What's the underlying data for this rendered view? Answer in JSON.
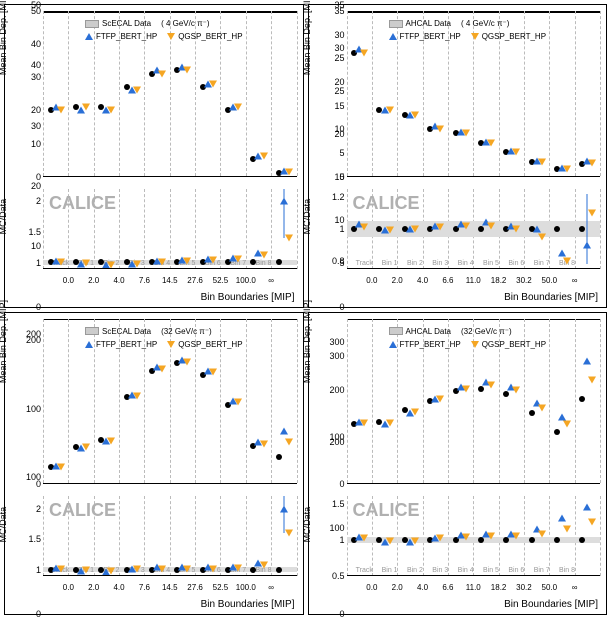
{
  "colors": {
    "data": "#000000",
    "ftfp": "#2a6fd6",
    "qgsp": "#f5a623",
    "band": "#dddddd",
    "grid": "#bbbbbb",
    "calice": "#b0b0b0"
  },
  "xtitle": "Bin Boundaries [MIP]",
  "calice": "CALICE",
  "bin_grid_positions": [
    0,
    10,
    20,
    30,
    40,
    50,
    60,
    70,
    80,
    90,
    100
  ],
  "bin_names": [
    "Track",
    "Bin 1",
    "Bin 2",
    "Bin 3",
    "Bin 4",
    "Bin 5",
    "Bin 6",
    "Bin 7",
    "Bin 8"
  ],
  "panels": [
    {
      "id": "tl",
      "ytitle_upper": "Mean Bin Dep. [MIP]",
      "ytitle_lower": "MC/Data",
      "legend": {
        "data": "ScECAL Data",
        "energy": "( 4 GeV/c π⁻)",
        "ftfp": "FTFP_BERT_HP",
        "qgsp": "QGSP_BERT_HP"
      },
      "upper": {
        "ymin": 0,
        "ymax": 50,
        "yticks": [
          0,
          10,
          20,
          30,
          40,
          50
        ],
        "bin_boundaries": [
          "0.0",
          "2.0",
          "4.0",
          "7.6",
          "14.5",
          "27.6",
          "52.5",
          "100.0",
          "∞"
        ],
        "series": {
          "data": [
            20,
            21,
            21,
            27,
            31,
            32,
            27,
            20,
            5,
            1
          ],
          "ftfp": [
            21,
            20,
            20,
            26,
            32,
            33,
            28,
            21,
            6,
            1.5
          ],
          "qgsp": [
            20,
            21,
            20,
            26,
            31,
            32,
            28,
            21,
            6,
            1.2
          ]
        }
      },
      "lower": {
        "ymin": 0.9,
        "ymax": 2.2,
        "yticks": [
          1,
          1.5,
          2
        ],
        "band_center": 1.0,
        "band_half": 0.04,
        "series": {
          "data": [
            1,
            1,
            1,
            1,
            1,
            1,
            1,
            1,
            1,
            1
          ],
          "ftfp": [
            1.02,
            0.97,
            0.96,
            0.98,
            1.03,
            1.04,
            1.05,
            1.07,
            1.15,
            2.0
          ],
          "qgsp": [
            1.0,
            0.99,
            0.96,
            0.97,
            1.01,
            1.02,
            1.04,
            1.06,
            1.12,
            1.4
          ]
        },
        "err": {
          "x": 95,
          "lo": 1.4,
          "hi": 2.2
        }
      }
    },
    {
      "id": "tr",
      "ytitle_upper": "Mean Bin Dep. [MIP]",
      "ytitle_lower": "MC/Data",
      "legend": {
        "data": "AHCAL Data",
        "energy": "( 4 GeV/c π⁻)",
        "ftfp": "FTFP_BERT_HP",
        "qgsp": "QGSP_BERT_HP"
      },
      "upper": {
        "ymin": 0,
        "ymax": 35,
        "yticks": [
          0,
          5,
          10,
          15,
          20,
          25,
          30,
          35
        ],
        "bin_boundaries": [
          "0.0",
          "2.0",
          "4.0",
          "6.6",
          "11.0",
          "18.2",
          "30.2",
          "50.0",
          "∞"
        ],
        "series": {
          "data": [
            26,
            14,
            13,
            10,
            9,
            7,
            5,
            3,
            1.5,
            2.5
          ],
          "ftfp": [
            27,
            14,
            13,
            10.5,
            9.2,
            7.2,
            5.2,
            3.2,
            1.7,
            3.2
          ],
          "qgsp": [
            26,
            14,
            13,
            10,
            9,
            7,
            5,
            3,
            1.5,
            2.8
          ]
        }
      },
      "lower": {
        "ymin": 0.75,
        "ymax": 1.25,
        "yticks": [
          0.8,
          1,
          1.2
        ],
        "band_center": 1.0,
        "band_half": 0.05,
        "series": {
          "data": [
            1,
            1,
            1,
            1,
            1,
            1,
            1,
            1,
            1,
            1
          ],
          "ftfp": [
            1.03,
            0.99,
            1.0,
            1.02,
            1.03,
            1.04,
            1.02,
            1.0,
            0.85,
            0.9
          ],
          "qgsp": [
            1.01,
            0.99,
            1.0,
            1.01,
            1.02,
            1.02,
            1.0,
            0.95,
            0.8,
            1.1
          ]
        },
        "err": {
          "x": 95,
          "lo": 0.78,
          "hi": 1.22
        }
      }
    },
    {
      "id": "bl",
      "ytitle_upper": "Mean Bin Dep. [MIP]",
      "ytitle_lower": "MC/Data",
      "legend": {
        "data": "ScECAL Data",
        "energy": "(32 GeV/c π⁻)",
        "ftfp": "FTFP_BERT_HP",
        "qgsp": "QGSP_BERT_HP"
      },
      "upper": {
        "ymin": 0,
        "ymax": 220,
        "yticks": [
          0,
          100,
          200
        ],
        "bin_boundaries": [
          "0.0",
          "2.0",
          "4.0",
          "7.6",
          "14.5",
          "27.6",
          "52.5",
          "100.0",
          "∞"
        ],
        "series": {
          "data": [
            22,
            48,
            58,
            115,
            150,
            160,
            145,
            105,
            50,
            35
          ],
          "ftfp": [
            23,
            47,
            56,
            118,
            155,
            165,
            150,
            110,
            55,
            70
          ],
          "qgsp": [
            22,
            48,
            57,
            116,
            152,
            162,
            148,
            108,
            52,
            55
          ]
        }
      },
      "lower": {
        "ymin": 0.9,
        "ymax": 2.2,
        "yticks": [
          1,
          1.5,
          2
        ],
        "band_center": 1.0,
        "band_half": 0.04,
        "series": {
          "data": [
            1,
            1,
            1,
            1,
            1,
            1,
            1,
            1,
            1,
            1
          ],
          "ftfp": [
            1.03,
            0.98,
            0.97,
            1.02,
            1.04,
            1.05,
            1.04,
            1.05,
            1.12,
            2.0
          ],
          "qgsp": [
            1.01,
            1.0,
            0.98,
            1.01,
            1.02,
            1.02,
            1.02,
            1.03,
            1.08,
            1.6
          ]
        },
        "err": {
          "x": 95,
          "lo": 1.6,
          "hi": 2.2
        }
      }
    },
    {
      "id": "br",
      "ytitle_upper": "Mean Bin Dep. [MIP]",
      "ytitle_lower": "MC/Data",
      "legend": {
        "data": "AHCAL Data",
        "energy": "(32 GeV/c π⁻)",
        "ftfp": "FTFP_BERT_HP",
        "qgsp": "QGSP_BERT_HP"
      },
      "upper": {
        "ymin": 0,
        "ymax": 350,
        "yticks": [
          0,
          100,
          200,
          300
        ],
        "bin_boundaries": [
          "0.0",
          "2.0",
          "4.0",
          "6.6",
          "11.0",
          "18.2",
          "30.2",
          "50.0",
          "∞"
        ],
        "series": {
          "data": [
            125,
            130,
            155,
            175,
            195,
            200,
            190,
            150,
            110,
            180
          ],
          "ftfp": [
            130,
            125,
            150,
            180,
            205,
            215,
            205,
            170,
            140,
            260
          ],
          "qgsp": [
            128,
            128,
            152,
            178,
            200,
            208,
            198,
            160,
            125,
            220
          ]
        }
      },
      "lower": {
        "ymin": 0.5,
        "ymax": 1.6,
        "yticks": [
          0.5,
          1,
          1.5
        ],
        "band_center": 1.0,
        "band_half": 0.04,
        "series": {
          "data": [
            1,
            1,
            1,
            1,
            1,
            1,
            1,
            1,
            1,
            1
          ],
          "ftfp": [
            1.04,
            0.97,
            0.97,
            1.03,
            1.06,
            1.08,
            1.08,
            1.15,
            1.3,
            1.45
          ],
          "qgsp": [
            1.02,
            0.98,
            0.98,
            1.02,
            1.04,
            1.05,
            1.05,
            1.08,
            1.15,
            1.25
          ]
        },
        "err": null
      }
    }
  ]
}
